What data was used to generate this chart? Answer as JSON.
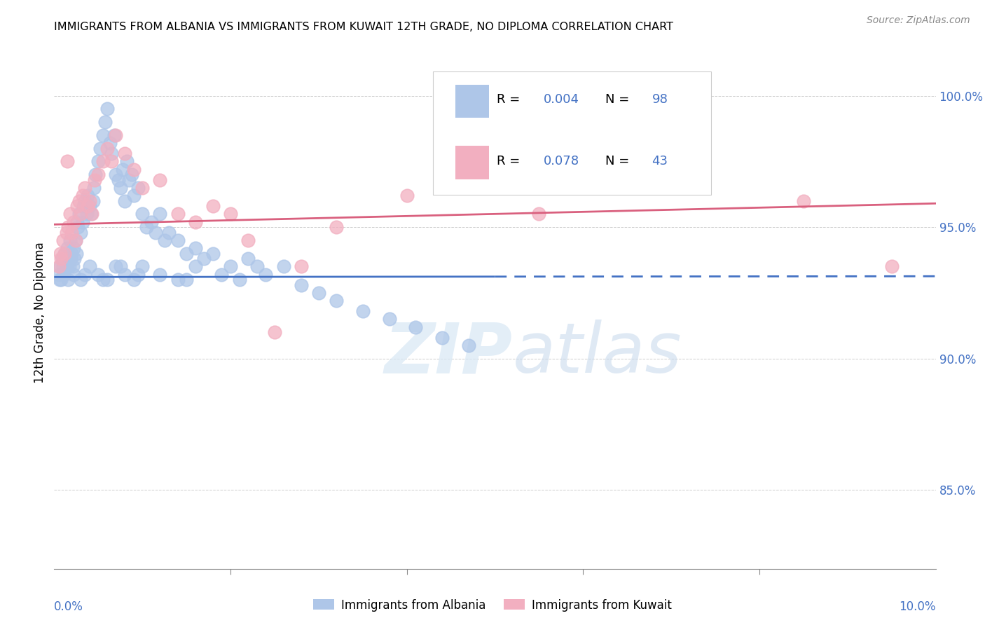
{
  "title": "IMMIGRANTS FROM ALBANIA VS IMMIGRANTS FROM KUWAIT 12TH GRADE, NO DIPLOMA CORRELATION CHART",
  "source": "Source: ZipAtlas.com",
  "ylabel": "12th Grade, No Diploma",
  "xlim": [
    0.0,
    10.0
  ],
  "ylim": [
    82.0,
    101.5
  ],
  "ytick_vals": [
    85.0,
    90.0,
    95.0,
    100.0
  ],
  "ytick_labels": [
    "85.0%",
    "90.0%",
    "95.0%",
    "100.0%"
  ],
  "legend_label1": "Immigrants from Albania",
  "legend_label2": "Immigrants from Kuwait",
  "color_albania": "#aec6e8",
  "color_kuwait": "#f2afc0",
  "color_trend_albania": "#4472c4",
  "color_trend_kuwait": "#d9607e",
  "color_axis_labels": "#4472c4",
  "color_grid": "#c8c8c8",
  "watermark_zip": "ZIP",
  "watermark_atlas": "atlas",
  "albania_trend_slope": 0.003,
  "albania_trend_intercept": 93.1,
  "albania_dash_start": 5.0,
  "kuwait_trend_slope": 0.08,
  "kuwait_trend_intercept": 95.1,
  "albania_x": [
    0.05,
    0.07,
    0.08,
    0.09,
    0.1,
    0.11,
    0.12,
    0.13,
    0.14,
    0.15,
    0.16,
    0.17,
    0.18,
    0.19,
    0.2,
    0.21,
    0.22,
    0.23,
    0.24,
    0.25,
    0.26,
    0.27,
    0.28,
    0.3,
    0.32,
    0.33,
    0.35,
    0.37,
    0.38,
    0.4,
    0.42,
    0.44,
    0.45,
    0.47,
    0.5,
    0.52,
    0.55,
    0.58,
    0.6,
    0.63,
    0.65,
    0.68,
    0.7,
    0.73,
    0.75,
    0.78,
    0.8,
    0.82,
    0.85,
    0.88,
    0.9,
    0.95,
    1.0,
    1.05,
    1.1,
    1.15,
    1.2,
    1.25,
    1.3,
    1.4,
    1.5,
    1.6,
    1.7,
    1.8,
    2.0,
    2.2,
    2.4,
    2.6,
    2.8,
    3.0,
    3.2,
    3.5,
    3.8,
    4.1,
    4.4,
    4.7,
    0.06,
    0.15,
    0.22,
    0.3,
    0.4,
    0.5,
    0.6,
    0.7,
    0.8,
    0.9,
    1.0,
    1.2,
    1.4,
    1.6,
    1.9,
    2.1,
    2.3,
    0.35,
    0.55,
    0.75,
    0.95,
    1.5
  ],
  "albania_y": [
    93.2,
    93.5,
    93.0,
    93.8,
    93.5,
    93.2,
    94.0,
    93.5,
    93.8,
    94.2,
    93.0,
    93.5,
    94.5,
    93.8,
    94.0,
    93.5,
    94.2,
    93.8,
    94.5,
    94.0,
    95.2,
    95.0,
    95.5,
    94.8,
    95.2,
    95.8,
    96.0,
    95.5,
    96.2,
    95.8,
    95.5,
    96.0,
    96.5,
    97.0,
    97.5,
    98.0,
    98.5,
    99.0,
    99.5,
    98.2,
    97.8,
    98.5,
    97.0,
    96.8,
    96.5,
    97.2,
    96.0,
    97.5,
    96.8,
    97.0,
    96.2,
    96.5,
    95.5,
    95.0,
    95.2,
    94.8,
    95.5,
    94.5,
    94.8,
    94.5,
    94.0,
    94.2,
    93.8,
    94.0,
    93.5,
    93.8,
    93.2,
    93.5,
    92.8,
    92.5,
    92.2,
    91.8,
    91.5,
    91.2,
    90.8,
    90.5,
    93.0,
    93.5,
    93.2,
    93.0,
    93.5,
    93.2,
    93.0,
    93.5,
    93.2,
    93.0,
    93.5,
    93.2,
    93.0,
    93.5,
    93.2,
    93.0,
    93.5,
    93.2,
    93.0,
    93.5,
    93.2,
    93.0
  ],
  "kuwait_x": [
    0.05,
    0.07,
    0.08,
    0.1,
    0.12,
    0.14,
    0.16,
    0.18,
    0.2,
    0.22,
    0.24,
    0.26,
    0.28,
    0.3,
    0.32,
    0.35,
    0.38,
    0.4,
    0.43,
    0.46,
    0.5,
    0.55,
    0.6,
    0.65,
    0.7,
    0.8,
    0.9,
    1.0,
    1.2,
    1.4,
    1.6,
    1.8,
    2.0,
    2.2,
    2.5,
    2.8,
    3.2,
    4.0,
    4.5,
    5.5,
    8.5,
    9.5,
    0.15
  ],
  "kuwait_y": [
    93.5,
    94.0,
    93.8,
    94.5,
    94.0,
    94.8,
    95.0,
    95.5,
    94.8,
    95.2,
    94.5,
    95.8,
    96.0,
    95.5,
    96.2,
    96.5,
    95.8,
    96.0,
    95.5,
    96.8,
    97.0,
    97.5,
    98.0,
    97.5,
    98.5,
    97.8,
    97.2,
    96.5,
    96.8,
    95.5,
    95.2,
    95.8,
    95.5,
    94.5,
    91.0,
    93.5,
    95.0,
    96.2,
    96.8,
    95.5,
    96.0,
    93.5,
    97.5
  ]
}
